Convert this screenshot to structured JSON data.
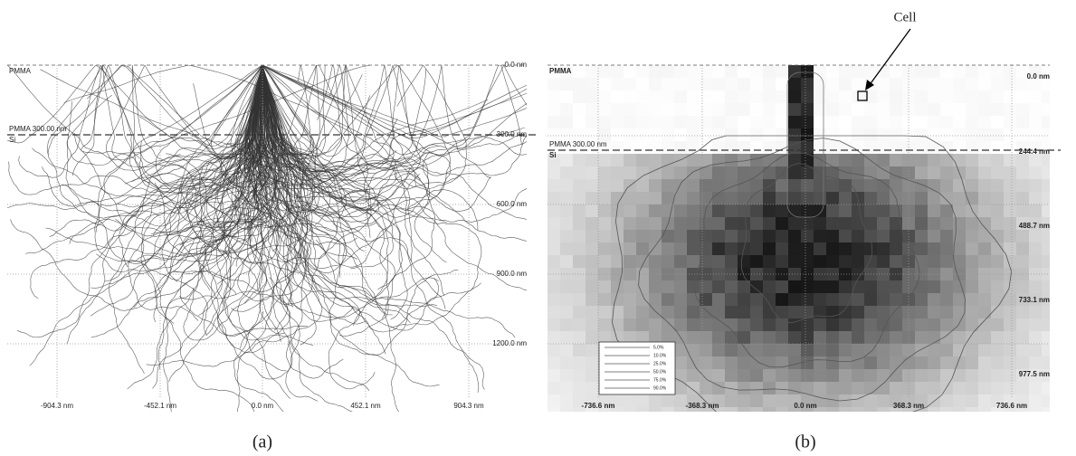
{
  "annotation": "Cell",
  "panels": [
    {
      "caption": "(a)",
      "layers": [
        "PMMA",
        "PMMA 300.00 nm",
        "Si"
      ],
      "depth_labels": [
        "0.0 nm",
        "300.0 nm",
        "600.0 nm",
        "900.0 nm",
        "1200.0 nm"
      ],
      "lateral_labels": [
        "-904.3 nm",
        "-452.1 nm",
        "0.0 nm",
        "452.1 nm",
        "904.3 nm"
      ]
    },
    {
      "caption": "(b)",
      "layers": [
        "PMMA",
        "PMMA 300.00 nm",
        "Si"
      ],
      "depth_labels": [
        "0.0 nm",
        "244.4 nm",
        "488.7 nm",
        "733.1 nm",
        "977.5 nm"
      ],
      "lateral_labels": [
        "-736.6 nm",
        "-368.3 nm",
        "0.0 nm",
        "368.3 nm",
        "736.6 nm"
      ],
      "legend": [
        "5.0%",
        "10.0%",
        "25.0%",
        "50.0%",
        "75.0%",
        "90.0%"
      ]
    }
  ]
}
